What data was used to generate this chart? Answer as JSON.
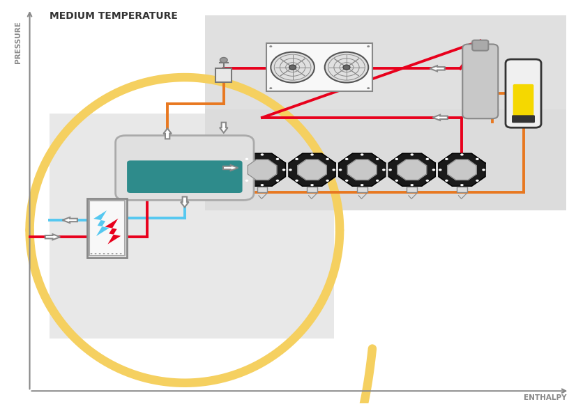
{
  "title": "MEDIUM TEMPERATURE",
  "xlabel": "ENTHALPY",
  "ylabel": "PRESSURE",
  "yellow_color": "#F5D060",
  "orange_color": "#E87820",
  "red_color": "#E8001C",
  "blue_color": "#55C8F0",
  "teal_color": "#2E8B8B",
  "gray_box_light": "#E8E8E8",
  "gray_box_upper": "#DCDCDC",
  "fan_box_color": "#F8F8F8",
  "compressor_outer": "#1A1A1A",
  "compressor_inner": "#C8C8C8",
  "tank_body": "#DCDCDC",
  "sep_color": "#BBBBBB",
  "receiver_fill": "#F5D800",
  "he_box_color": "#F0F0F0",
  "lightning_blue": "#55C8F0",
  "lightning_red": "#E8001C"
}
